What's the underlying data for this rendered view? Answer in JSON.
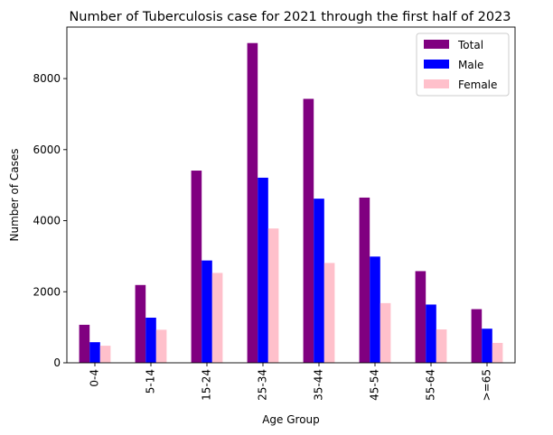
{
  "chart_data": {
    "type": "bar",
    "title": "Number of Tuberculosis case for 2021 through the first half of 2023",
    "xlabel": "Age Group",
    "ylabel": "Number of Cases",
    "categories": [
      "0-4",
      "5-14",
      "15-24",
      "25-34",
      "35-44",
      "45-54",
      "55-64",
      ">=65"
    ],
    "series": [
      {
        "name": "Total",
        "color": "#800080",
        "values": [
          1070,
          2190,
          5410,
          9000,
          7430,
          4650,
          2580,
          1510
        ]
      },
      {
        "name": "Male",
        "color": "#0000ff",
        "values": [
          580,
          1270,
          2880,
          5210,
          4620,
          2990,
          1640,
          960
        ]
      },
      {
        "name": "Female",
        "color": "#ffc0cb",
        "values": [
          480,
          930,
          2530,
          3780,
          2810,
          1680,
          940,
          560
        ]
      }
    ],
    "ylim": [
      0,
      9450
    ],
    "yticks": [
      0,
      2000,
      4000,
      6000,
      8000
    ],
    "grid": false,
    "legend_position": "top-right"
  }
}
